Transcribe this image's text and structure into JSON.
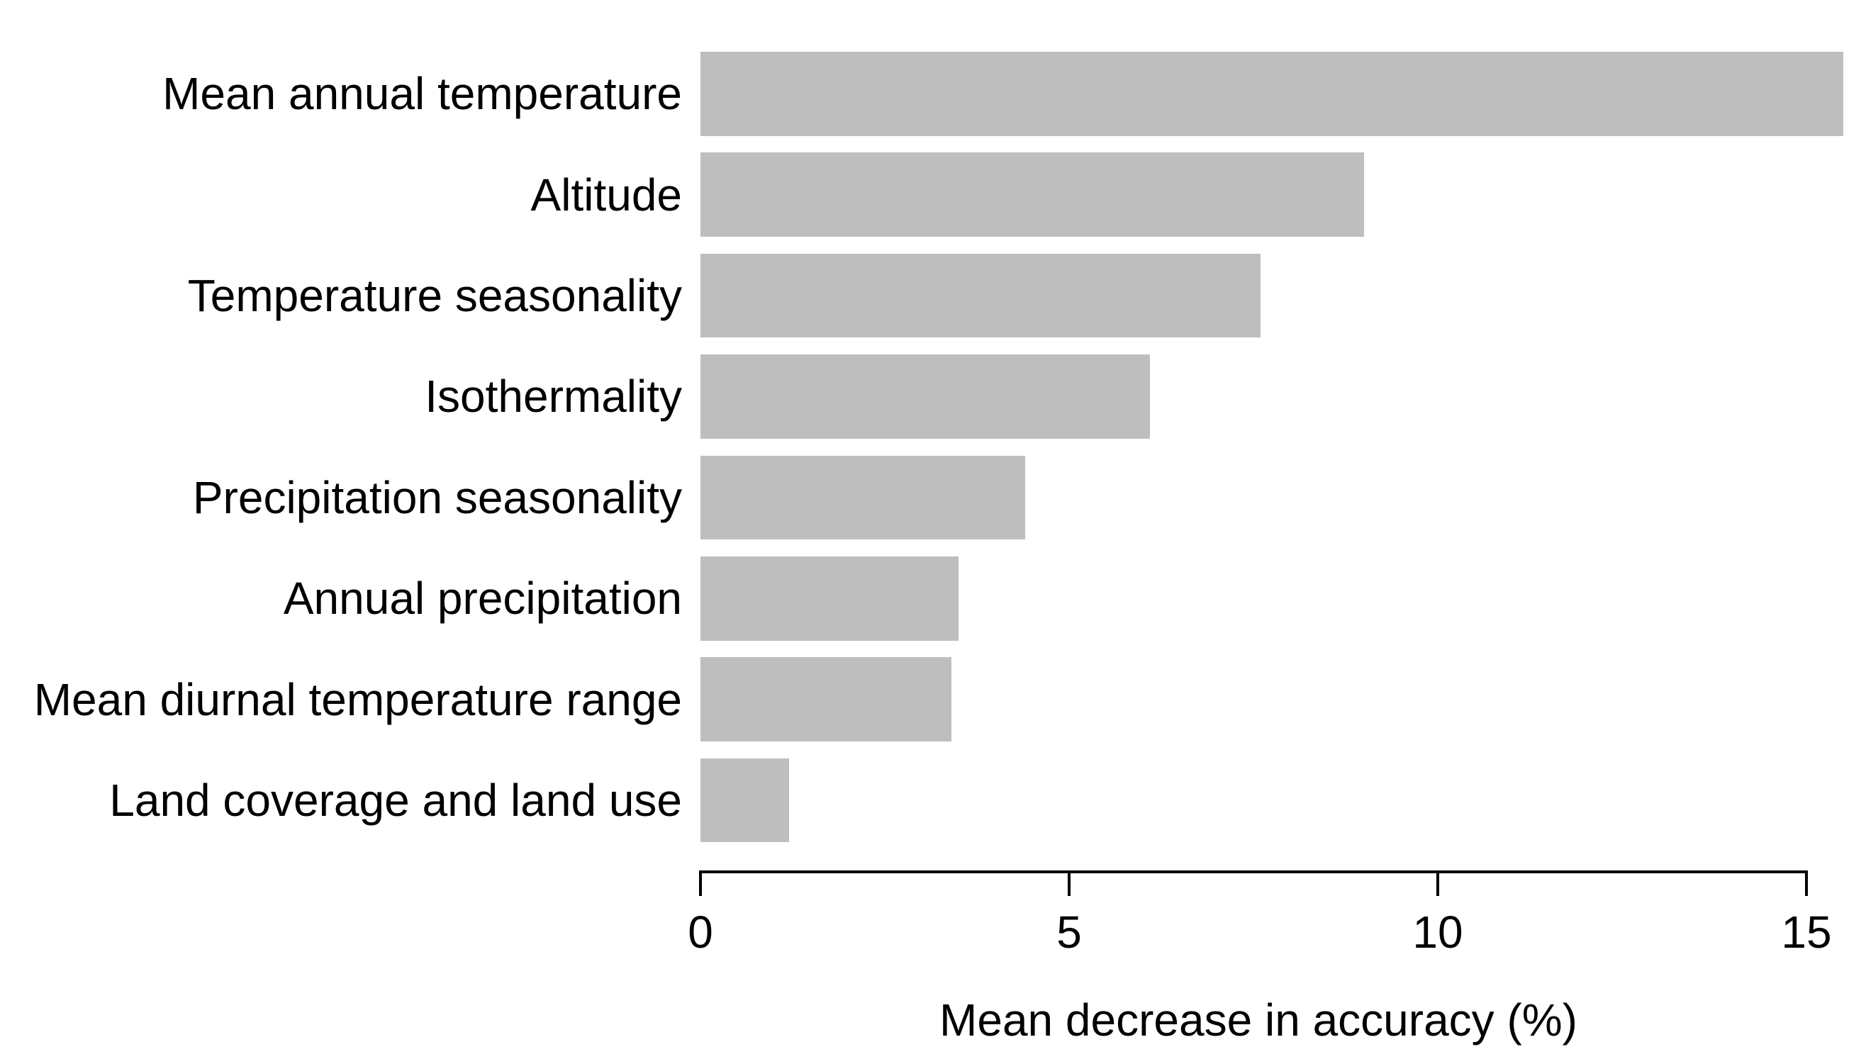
{
  "chart_data": {
    "type": "bar",
    "orientation": "horizontal",
    "title": "",
    "categories": [
      "Mean annual temperature",
      "Altitude",
      "Temperature seasonality",
      "Isothermality",
      "Precipitation seasonality",
      "Annual precipitation",
      "Mean diurnal temperature range",
      "Land coverage and land use"
    ],
    "values": [
      15.5,
      9.0,
      7.6,
      6.1,
      4.4,
      3.5,
      3.4,
      1.2
    ],
    "xlabel": "Mean decrease in accuracy (%)",
    "ylabel": "",
    "x_ticks": [
      0,
      5,
      10,
      15
    ],
    "xlim": [
      0,
      15.8
    ],
    "grid": false,
    "legend": false,
    "bar_color": "#bebebe",
    "axis_color": "#000000",
    "text_color": "#000000",
    "background_color": "#ffffff"
  }
}
